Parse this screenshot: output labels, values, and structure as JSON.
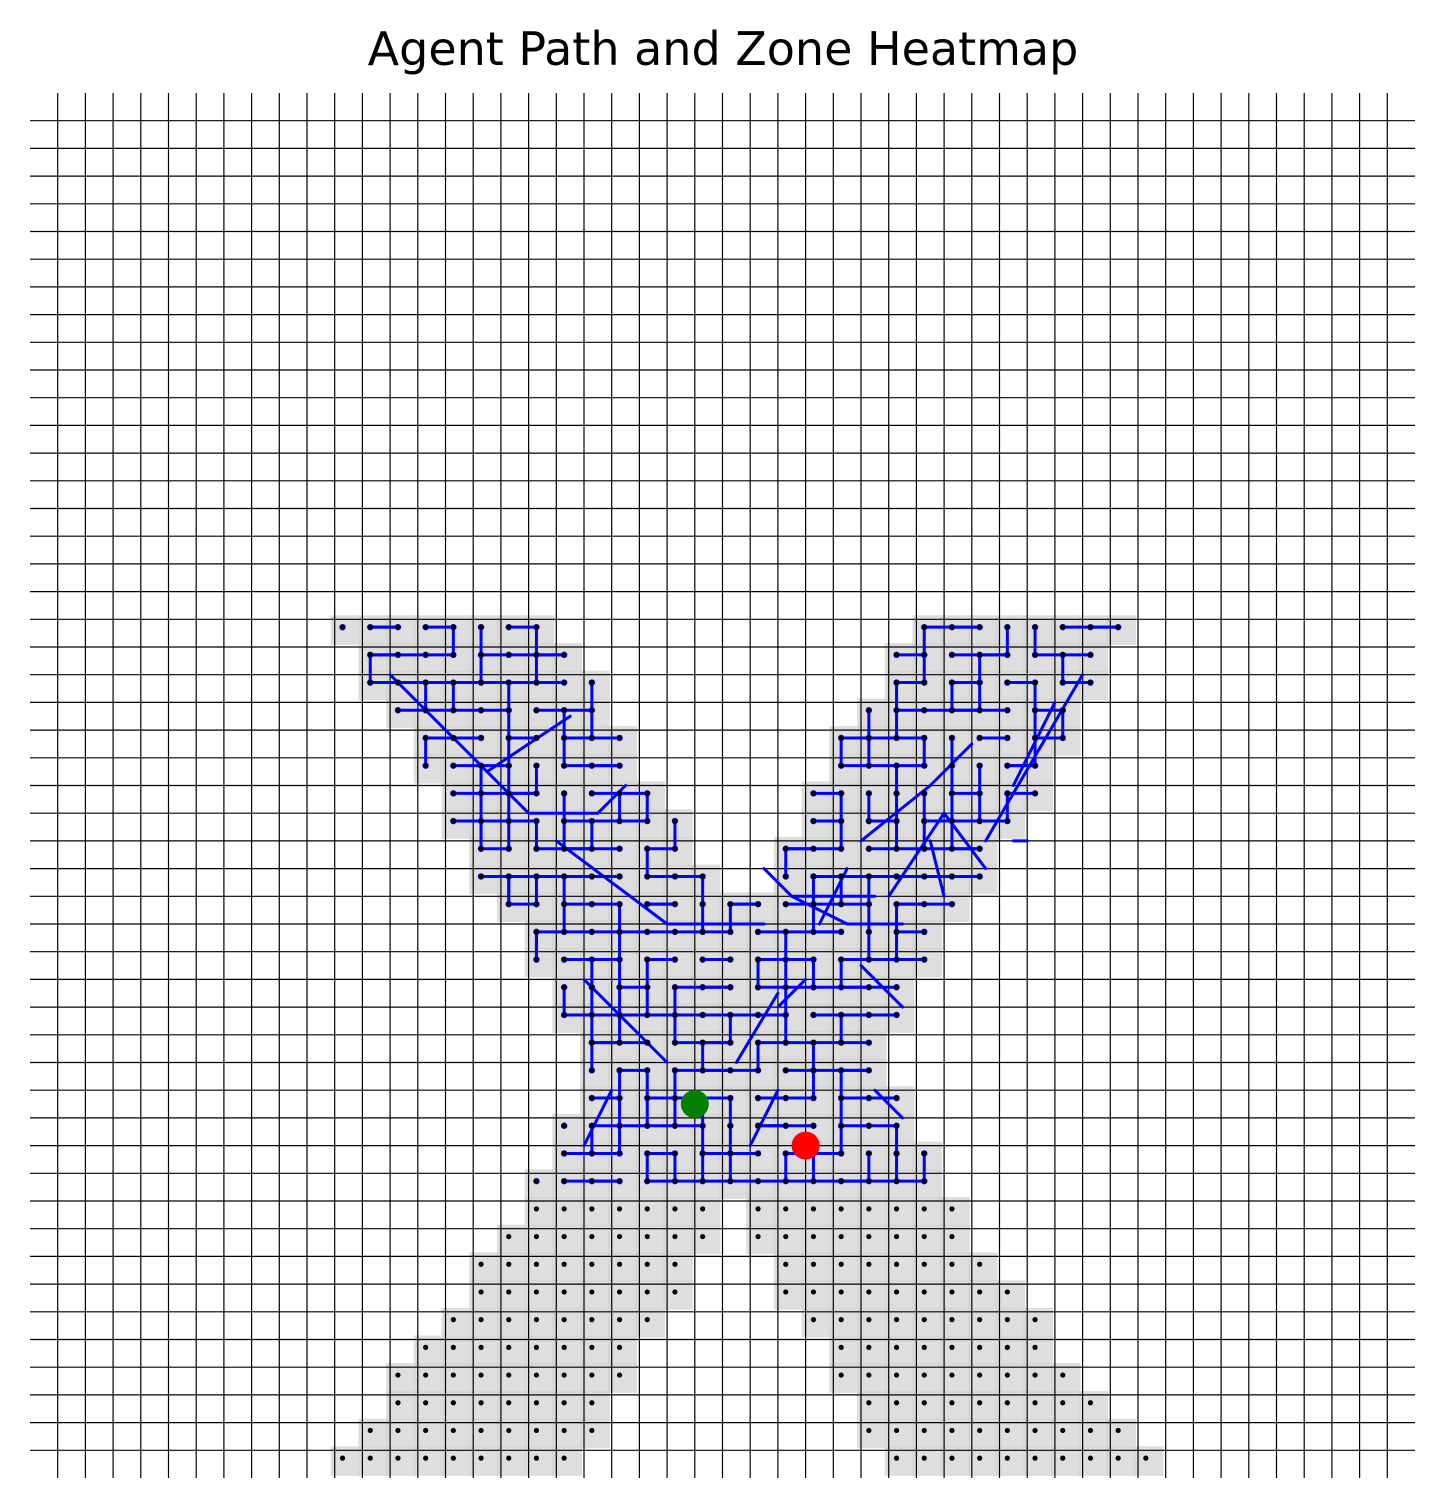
{
  "chart_data": {
    "type": "heatmap",
    "title": "Agent Path and Zone Heatmap",
    "xlabel": "",
    "ylabel": "",
    "grid": true,
    "axes_visible": false,
    "grid_size": [
      50,
      50
    ],
    "xlim": [
      0,
      50
    ],
    "ylim": [
      0,
      50
    ],
    "colors": {
      "grid": "#000000",
      "zone": "#d3d3d3",
      "zone_dot": "#000000",
      "path": "#0000ff",
      "start": "#008000",
      "end": "#ff0000"
    },
    "zone_shape": "X",
    "zone_rows": [
      {
        "row": 19,
        "spans": [
          [
            11,
            18
          ],
          [
            32,
            39
          ]
        ]
      },
      {
        "row": 20,
        "spans": [
          [
            12,
            19
          ],
          [
            31,
            38
          ]
        ]
      },
      {
        "row": 21,
        "spans": [
          [
            12,
            20
          ],
          [
            31,
            38
          ]
        ]
      },
      {
        "row": 22,
        "spans": [
          [
            13,
            20
          ],
          [
            30,
            37
          ]
        ]
      },
      {
        "row": 23,
        "spans": [
          [
            14,
            21
          ],
          [
            29,
            37
          ]
        ]
      },
      {
        "row": 24,
        "spans": [
          [
            14,
            21
          ],
          [
            29,
            36
          ]
        ]
      },
      {
        "row": 25,
        "spans": [
          [
            15,
            22
          ],
          [
            28,
            36
          ]
        ]
      },
      {
        "row": 26,
        "spans": [
          [
            15,
            23
          ],
          [
            28,
            35
          ]
        ]
      },
      {
        "row": 27,
        "spans": [
          [
            16,
            23
          ],
          [
            27,
            34
          ]
        ]
      },
      {
        "row": 28,
        "spans": [
          [
            16,
            24
          ],
          [
            27,
            34
          ]
        ]
      },
      {
        "row": 29,
        "spans": [
          [
            17,
            25
          ],
          [
            26,
            33
          ]
        ]
      },
      {
        "row": 30,
        "spans": [
          [
            18,
            32
          ]
        ]
      },
      {
        "row": 31,
        "spans": [
          [
            18,
            32
          ]
        ]
      },
      {
        "row": 32,
        "spans": [
          [
            19,
            31
          ]
        ]
      },
      {
        "row": 33,
        "spans": [
          [
            19,
            31
          ]
        ]
      },
      {
        "row": 34,
        "spans": [
          [
            20,
            30
          ]
        ]
      },
      {
        "row": 35,
        "spans": [
          [
            20,
            30
          ]
        ]
      },
      {
        "row": 36,
        "spans": [
          [
            20,
            31
          ]
        ]
      },
      {
        "row": 37,
        "spans": [
          [
            19,
            31
          ]
        ]
      },
      {
        "row": 38,
        "spans": [
          [
            19,
            32
          ]
        ]
      },
      {
        "row": 39,
        "spans": [
          [
            18,
            32
          ]
        ]
      },
      {
        "row": 40,
        "spans": [
          [
            18,
            24
          ],
          [
            26,
            33
          ]
        ]
      },
      {
        "row": 41,
        "spans": [
          [
            17,
            24
          ],
          [
            26,
            33
          ]
        ]
      },
      {
        "row": 42,
        "spans": [
          [
            16,
            23
          ],
          [
            27,
            34
          ]
        ]
      },
      {
        "row": 43,
        "spans": [
          [
            16,
            23
          ],
          [
            27,
            35
          ]
        ]
      },
      {
        "row": 44,
        "spans": [
          [
            15,
            22
          ],
          [
            28,
            36
          ]
        ]
      },
      {
        "row": 45,
        "spans": [
          [
            14,
            21
          ],
          [
            29,
            36
          ]
        ]
      },
      {
        "row": 46,
        "spans": [
          [
            13,
            21
          ],
          [
            29,
            37
          ]
        ]
      },
      {
        "row": 47,
        "spans": [
          [
            13,
            20
          ],
          [
            30,
            38
          ]
        ]
      },
      {
        "row": 48,
        "spans": [
          [
            12,
            20
          ],
          [
            30,
            39
          ]
        ]
      },
      {
        "row": 49,
        "spans": [
          [
            11,
            19
          ],
          [
            31,
            40
          ]
        ]
      }
    ],
    "path_region_rows": [
      19,
      39
    ],
    "path_connectors": [
      [
        [
          13,
          21
        ],
        [
          16.5,
          24.5
        ]
      ],
      [
        [
          16.5,
          24.5
        ],
        [
          18,
          26
        ]
      ],
      [
        [
          16.5,
          24.5
        ],
        [
          19.5,
          22.5
        ]
      ],
      [
        [
          18,
          26
        ],
        [
          20.5,
          26
        ]
      ],
      [
        [
          20.5,
          26
        ],
        [
          21.5,
          25
        ]
      ],
      [
        [
          19,
          27
        ],
        [
          23,
          30
        ]
      ],
      [
        [
          23,
          30
        ],
        [
          26.5,
          30
        ]
      ],
      [
        [
          27.5,
          29
        ],
        [
          26.5,
          28
        ]
      ],
      [
        [
          27.5,
          29
        ],
        [
          29.5,
          30
        ]
      ],
      [
        [
          29.5,
          30
        ],
        [
          31.5,
          30
        ]
      ],
      [
        [
          20,
          32
        ],
        [
          21.5,
          33.5
        ]
      ],
      [
        [
          21.5,
          33.5
        ],
        [
          23,
          35
        ]
      ],
      [
        [
          25.5,
          35
        ],
        [
          27,
          32.5
        ]
      ],
      [
        [
          27,
          33
        ],
        [
          28,
          32
        ]
      ],
      [
        [
          20,
          38
        ],
        [
          21,
          36
        ]
      ],
      [
        [
          26,
          38
        ],
        [
          27,
          36
        ]
      ],
      [
        [
          30,
          27
        ],
        [
          32.5,
          25
        ]
      ],
      [
        [
          32.5,
          25
        ],
        [
          34,
          23.5
        ]
      ],
      [
        [
          36,
          27
        ],
        [
          35.5,
          27
        ]
      ],
      [
        [
          31,
          29
        ],
        [
          33,
          26
        ]
      ],
      [
        [
          37,
          22
        ],
        [
          35.5,
          25
        ]
      ],
      [
        [
          38,
          21
        ],
        [
          34.5,
          27
        ]
      ],
      [
        [
          33,
          26
        ],
        [
          34.5,
          28
        ]
      ],
      [
        [
          32.5,
          27
        ],
        [
          33,
          29
        ]
      ],
      [
        [
          30,
          31.5
        ],
        [
          31.5,
          33
        ]
      ],
      [
        [
          31.5,
          37
        ],
        [
          30.5,
          36
        ]
      ],
      [
        [
          28.5,
          30
        ],
        [
          29.5,
          28
        ]
      ],
      [
        [
          27.5,
          29
        ],
        [
          30.5,
          29
        ]
      ]
    ],
    "start_point": [
      24,
      36.5
    ],
    "end_point": [
      28,
      38
    ]
  }
}
